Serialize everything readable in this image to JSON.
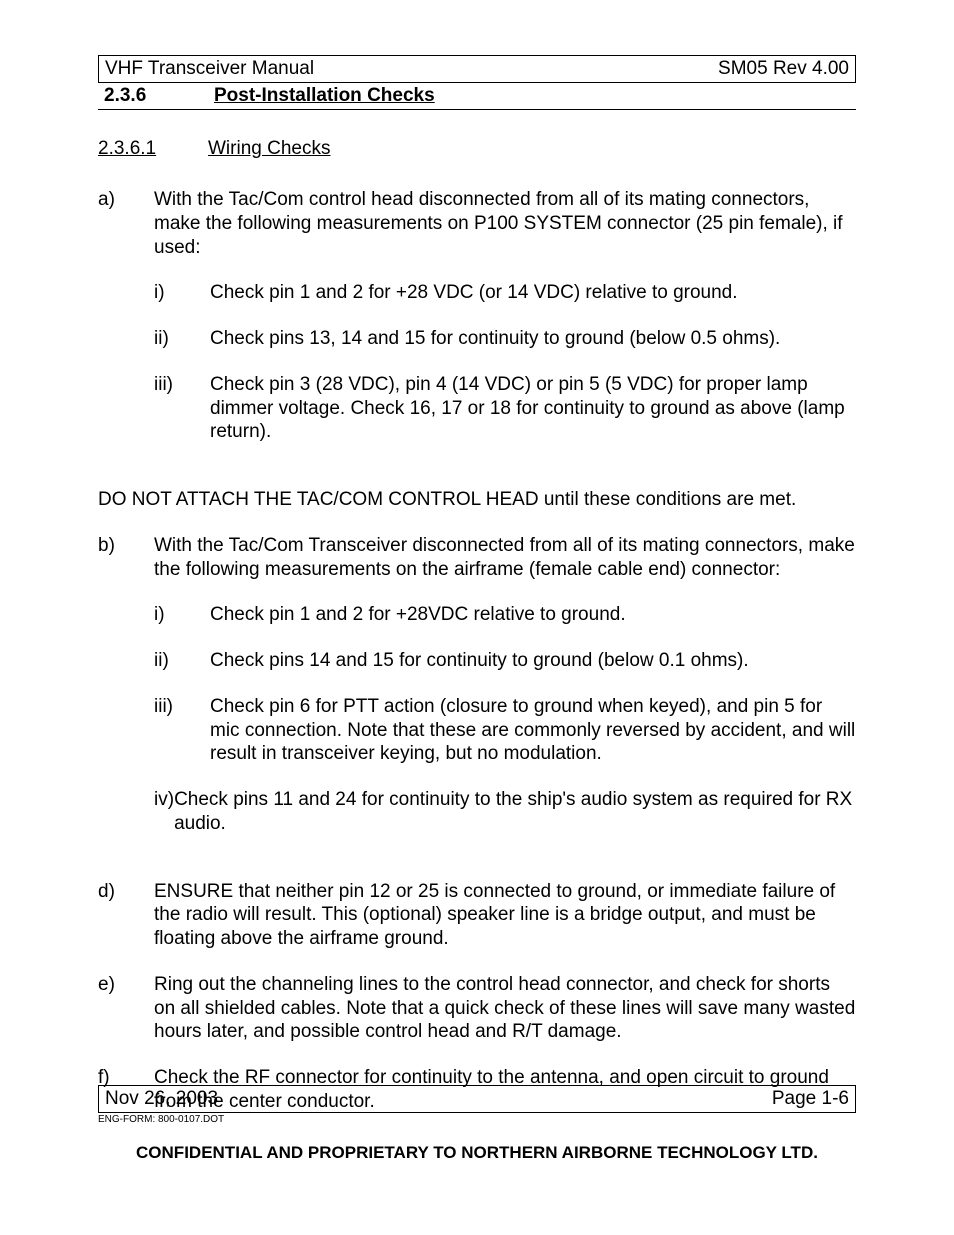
{
  "header": {
    "left": "VHF Transceiver Manual",
    "right": "SM05 Rev 4.00"
  },
  "section": {
    "number": "2.3.6",
    "title": "Post-Installation Checks"
  },
  "subsection": {
    "number": "2.3.6.1",
    "title": "Wiring Checks"
  },
  "items": {
    "a": {
      "label": "a)",
      "text": "With the Tac/Com control head disconnected from all of its mating connectors, make the following measurements on P100 SYSTEM connector (25 pin female), if used:",
      "sub": {
        "i": {
          "label": "i)",
          "text": "Check pin 1 and 2 for +28 VDC (or 14 VDC) relative to ground."
        },
        "ii": {
          "label": "ii)",
          "text": "Check pins 13, 14 and 15 for continuity to ground (below 0.5 ohms)."
        },
        "iii": {
          "label": "iii)",
          "text": "Check pin 3 (28 VDC), pin 4 (14 VDC) or pin 5 (5 VDC) for proper lamp dimmer voltage.  Check 16, 17 or 18 for continuity to ground as above (lamp return)."
        }
      }
    },
    "warn": "DO NOT ATTACH THE TAC/COM CONTROL HEAD until these conditions are met.",
    "b": {
      "label": "b)",
      "text": "With the Tac/Com Transceiver disconnected from all of its mating connectors, make the following measurements on the airframe (female cable end) connector:",
      "sub": {
        "i": {
          "label": "i)",
          "text": "Check pin 1 and 2 for +28VDC relative to ground."
        },
        "ii": {
          "label": "ii)",
          "text": "Check pins 14 and 15 for continuity to ground (below 0.1 ohms)."
        },
        "iii": {
          "label": "iii)",
          "text": "Check pin 6 for PTT action (closure to ground when keyed), and pin 5 for mic connection.  Note that these are commonly reversed by accident, and will result in transceiver keying, but no modulation."
        },
        "iv": {
          "label": "iv)",
          "tail": "Check pins 11 and 24 for continuity to the ship's audio system as required for RX audio."
        }
      }
    },
    "d": {
      "label": "d)",
      "text": "ENSURE that neither pin 12 or 25 is connected to ground, or immediate failure of the radio will result.  This (optional) speaker line is a bridge output, and must be floating above the airframe ground."
    },
    "e": {
      "label": "e)",
      "text": "Ring out the channeling lines to the control head connector, and check for shorts on all shielded cables.  Note that a quick check of these lines will save many wasted hours later, and possible control head and R/T damage."
    },
    "f": {
      "label": "f)",
      "text": "Check the RF connector for continuity to the antenna, and open circuit to ground from the center conductor."
    }
  },
  "footer": {
    "date": "Nov 26, 2003",
    "page": "Page 1-6",
    "form": "ENG-FORM: 800-0107.DOT",
    "confidential": "CONFIDENTIAL AND PROPRIETARY TO NORTHERN AIRBORNE TECHNOLOGY LTD."
  }
}
